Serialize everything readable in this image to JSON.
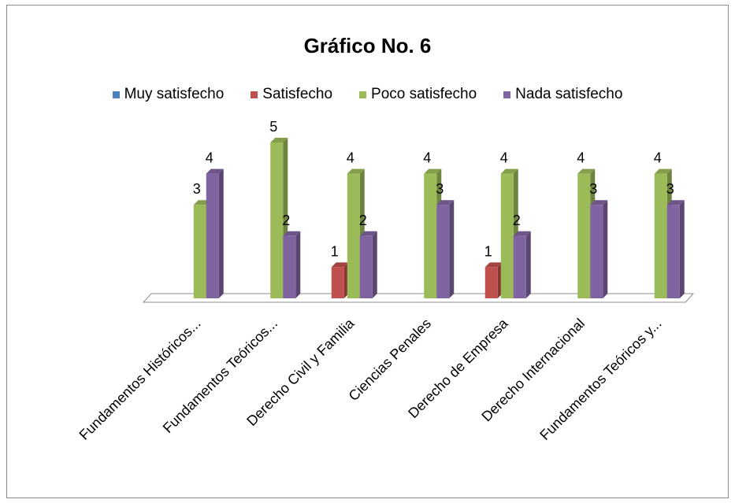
{
  "chart_data": {
    "type": "bar",
    "title": "Gráfico No. 6",
    "categories": [
      "Fundamentos Históricos...",
      "Fundamentos Teóricos...",
      "Derecho Civil y Familia",
      "Ciencias Penales",
      "Derecho de Empresa",
      "Derecho Internacional",
      "Fundamentos Teóricos y..."
    ],
    "series": [
      {
        "name": "Muy satisfecho",
        "color": "#4f81bd",
        "values": [
          0,
          0,
          0,
          0,
          0,
          0,
          0
        ]
      },
      {
        "name": "Satisfecho",
        "color": "#c0504d",
        "values": [
          0,
          0,
          1,
          0,
          1,
          0,
          0
        ]
      },
      {
        "name": "Poco satisfecho",
        "color": "#9bbb59",
        "values": [
          3,
          5,
          4,
          4,
          4,
          4,
          4
        ]
      },
      {
        "name": "Nada satisfecho",
        "color": "#8064a2",
        "values": [
          4,
          2,
          2,
          3,
          2,
          3,
          3
        ]
      }
    ],
    "ylim": [
      0,
      5
    ],
    "grid": false,
    "legend_position": "top",
    "data_labels": true,
    "style": "3d-clustered-column"
  }
}
